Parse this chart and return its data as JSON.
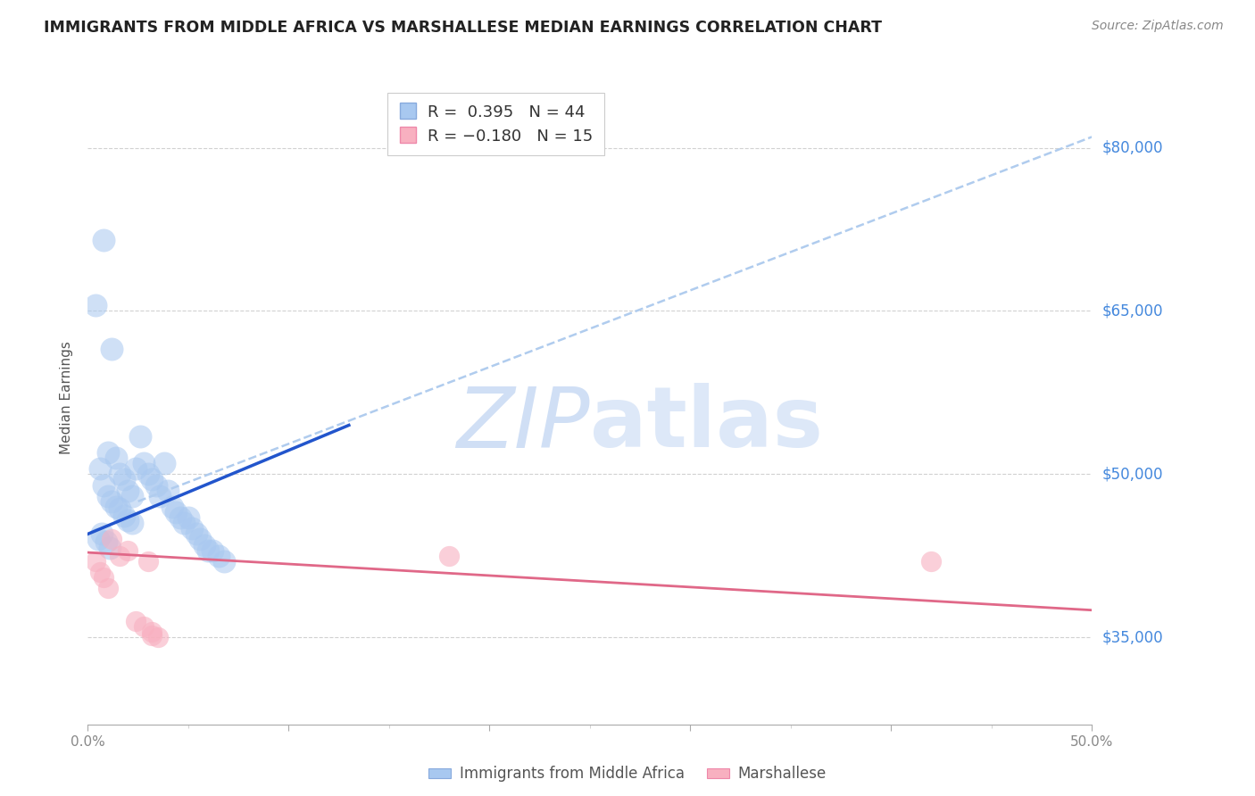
{
  "title": "IMMIGRANTS FROM MIDDLE AFRICA VS MARSHALLESE MEDIAN EARNINGS CORRELATION CHART",
  "source": "Source: ZipAtlas.com",
  "ylabel": "Median Earnings",
  "y_tick_labels": [
    "$35,000",
    "$50,000",
    "$65,000",
    "$80,000"
  ],
  "y_tick_values": [
    35000,
    50000,
    65000,
    80000
  ],
  "ylim": [
    27000,
    87000
  ],
  "xlim": [
    0.0,
    0.5
  ],
  "blue_R": 0.395,
  "blue_N": 44,
  "pink_R": -0.18,
  "pink_N": 15,
  "blue_color": "#a8c8f0",
  "pink_color": "#f8b0c0",
  "blue_line_color": "#2255cc",
  "pink_line_color": "#e06888",
  "dashed_line_color": "#b0ccee",
  "watermark_color": "#d0dff5",
  "background_color": "#ffffff",
  "grid_color": "#cccccc",
  "right_axis_color": "#4488dd",
  "blue_scatter_x": [
    0.008,
    0.01,
    0.012,
    0.014,
    0.016,
    0.018,
    0.02,
    0.022,
    0.024,
    0.026,
    0.028,
    0.03,
    0.032,
    0.034,
    0.036,
    0.038,
    0.04,
    0.042,
    0.044,
    0.046,
    0.048,
    0.05,
    0.052,
    0.054,
    0.056,
    0.058,
    0.06,
    0.062,
    0.065,
    0.068,
    0.004,
    0.006,
    0.008,
    0.01,
    0.012,
    0.014,
    0.016,
    0.018,
    0.02,
    0.022,
    0.005,
    0.007,
    0.009,
    0.011
  ],
  "blue_scatter_y": [
    71500,
    52000,
    61500,
    51500,
    50000,
    49500,
    48500,
    48000,
    50500,
    53500,
    51000,
    50000,
    49500,
    49000,
    48000,
    51000,
    48500,
    47000,
    46500,
    46000,
    45500,
    46000,
    45000,
    44500,
    44000,
    43500,
    43000,
    43000,
    42500,
    42000,
    65500,
    50500,
    49000,
    48000,
    47500,
    47000,
    46800,
    46200,
    45800,
    45500,
    44000,
    44500,
    43800,
    43200
  ],
  "pink_scatter_x": [
    0.004,
    0.006,
    0.008,
    0.01,
    0.012,
    0.016,
    0.02,
    0.024,
    0.028,
    0.03,
    0.032,
    0.035,
    0.18,
    0.42,
    0.032
  ],
  "pink_scatter_y": [
    42000,
    41000,
    40500,
    39500,
    44000,
    42500,
    43000,
    36500,
    36000,
    42000,
    35500,
    35000,
    42500,
    42000,
    35200
  ],
  "blue_line_x": [
    0.0,
    0.13
  ],
  "blue_line_y": [
    44500,
    54500
  ],
  "dashed_line_x": [
    0.025,
    0.5
  ],
  "dashed_line_y": [
    47500,
    81000
  ],
  "pink_line_x": [
    0.0,
    0.5
  ],
  "pink_line_y": [
    42800,
    37500
  ]
}
